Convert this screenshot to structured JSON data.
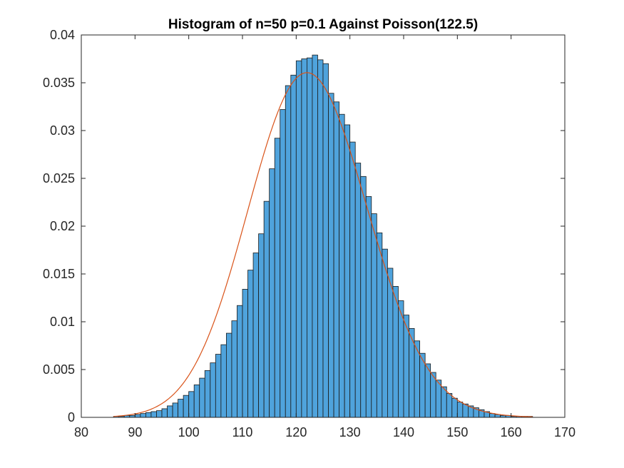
{
  "chart_data": {
    "type": "bar",
    "title": "Histogram of n=50 p=0.1 Against Poisson(122.5)",
    "xlabel": "",
    "ylabel": "",
    "xlim": [
      80,
      170
    ],
    "ylim": [
      0,
      0.04
    ],
    "xticks": [
      80,
      90,
      100,
      110,
      120,
      130,
      140,
      150,
      160,
      170
    ],
    "yticks": [
      0,
      0.005,
      0.01,
      0.015,
      0.02,
      0.025,
      0.03,
      0.035,
      0.04
    ],
    "ytick_labels": [
      "0",
      "0.005",
      "0.01",
      "0.015",
      "0.02",
      "0.025",
      "0.03",
      "0.035",
      "0.04"
    ],
    "grid": false,
    "bin_width": 1,
    "bins": {
      "x": [
        86,
        87,
        88,
        89,
        90,
        91,
        92,
        93,
        94,
        95,
        96,
        97,
        98,
        99,
        100,
        101,
        102,
        103,
        104,
        105,
        106,
        107,
        108,
        109,
        110,
        111,
        112,
        113,
        114,
        115,
        116,
        117,
        118,
        119,
        120,
        121,
        122,
        123,
        124,
        125,
        126,
        127,
        128,
        129,
        130,
        131,
        132,
        133,
        134,
        135,
        136,
        137,
        138,
        139,
        140,
        141,
        142,
        143,
        144,
        145,
        146,
        147,
        148,
        149,
        150,
        151,
        152,
        153,
        154,
        155,
        156,
        157,
        158,
        159,
        160,
        161,
        162,
        163
      ],
      "values": [
        0.0001,
        0.0001,
        0.0002,
        0.0002,
        0.0003,
        0.0004,
        0.0005,
        0.0006,
        0.0007,
        0.0009,
        0.0012,
        0.0015,
        0.0019,
        0.0023,
        0.0027,
        0.0034,
        0.0041,
        0.0049,
        0.0057,
        0.0066,
        0.0076,
        0.0088,
        0.0101,
        0.0117,
        0.0134,
        0.0154,
        0.0172,
        0.0192,
        0.0226,
        0.026,
        0.0292,
        0.0322,
        0.0347,
        0.0358,
        0.0373,
        0.0375,
        0.0376,
        0.0379,
        0.0374,
        0.037,
        0.0339,
        0.033,
        0.0317,
        0.0306,
        0.0288,
        0.0266,
        0.0252,
        0.0231,
        0.0213,
        0.0193,
        0.0176,
        0.0156,
        0.0137,
        0.0122,
        0.0107,
        0.0093,
        0.008,
        0.0067,
        0.0056,
        0.0047,
        0.0039,
        0.0032,
        0.0025,
        0.002,
        0.0016,
        0.0014,
        0.0012,
        0.001,
        0.0008,
        0.0006,
        0.0004,
        0.0003,
        0.0002,
        0.0002,
        0.0001,
        0.0001,
        0.0001,
        0.0001
      ]
    },
    "curve": {
      "lambda": 122.5,
      "x_range": [
        86,
        164
      ],
      "color": "#d95319"
    },
    "bar_color": "#4fa3dc",
    "bar_edge_color": "#1a1a1a"
  }
}
